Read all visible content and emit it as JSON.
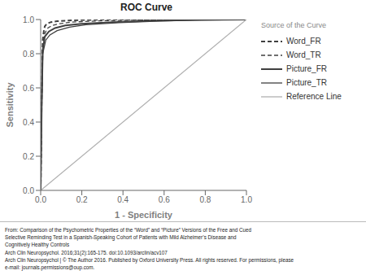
{
  "chart_data": {
    "type": "line",
    "title": "ROC Curve",
    "x_label": "1 - Specificity",
    "y_label": "Sensitivity",
    "xlim": [
      0.0,
      1.0
    ],
    "ylim": [
      0.0,
      1.0
    ],
    "xticks": [
      {
        "value": 0.0,
        "label": "0.0"
      },
      0.2,
      0.4,
      0.6,
      0.8,
      {
        "value": 1.0,
        "label": "1.0"
      }
    ],
    "yticks": [
      {
        "value": 0.0,
        "label": "0.0"
      },
      0.2,
      0.4,
      0.6,
      0.8,
      {
        "value": 1.0,
        "label": "1.0"
      }
    ],
    "grid": false,
    "legend_title": "Source of the Curve",
    "series": [
      {
        "name": "Word_FR",
        "color": "#404040",
        "line_style": "dashed",
        "x": [
          0.0,
          0.005,
          0.01,
          0.015,
          0.02,
          0.03,
          0.05,
          0.08,
          0.15,
          0.3,
          0.5,
          0.7,
          1.0
        ],
        "values": [
          0.0,
          0.55,
          0.88,
          0.93,
          0.96,
          0.975,
          0.985,
          0.99,
          0.995,
          1.0,
          1.0,
          1.0,
          1.0
        ]
      },
      {
        "name": "Word_TR",
        "color": "#404040",
        "line_style": "dashed",
        "x": [
          0.0,
          0.005,
          0.01,
          0.02,
          0.035,
          0.055,
          0.09,
          0.15,
          0.3,
          0.5,
          0.7,
          1.0
        ],
        "values": [
          0.0,
          0.52,
          0.85,
          0.92,
          0.95,
          0.965,
          0.975,
          0.985,
          0.993,
          0.997,
          1.0,
          1.0
        ]
      },
      {
        "name": "Picture_FR",
        "color": "#404040",
        "line_style": "solid",
        "x": [
          0.0,
          0.005,
          0.01,
          0.02,
          0.04,
          0.07,
          0.12,
          0.2,
          0.35,
          0.55,
          0.75,
          1.0
        ],
        "values": [
          0.0,
          0.5,
          0.82,
          0.9,
          0.93,
          0.95,
          0.965,
          0.975,
          0.985,
          0.993,
          0.998,
          1.0
        ]
      },
      {
        "name": "Picture_TR",
        "color": "#404040",
        "line_style": "solid",
        "x": [
          0.0,
          0.005,
          0.01,
          0.025,
          0.045,
          0.08,
          0.14,
          0.22,
          0.38,
          0.58,
          0.78,
          1.0
        ],
        "values": [
          0.0,
          0.48,
          0.8,
          0.88,
          0.91,
          0.935,
          0.955,
          0.97,
          0.982,
          0.991,
          0.997,
          1.0
        ]
      },
      {
        "name": "Reference Line",
        "color": "#b0b0b0",
        "line_style": "solid",
        "x": [
          0,
          1
        ],
        "values": [
          0,
          1
        ]
      }
    ],
    "annotations": [
      "From: Comparison of the Psychometric Properties of the “Word” and “Picture” Versions of the Free and Cued",
      "Selective Reminding Test in a Spanish-Speaking Cohort of Patients with Mild Alzheimer’s Disease and",
      "Cognitively Healthy Controls",
      "Arch Clin Neuropsychol. 2016;31(2):165-175. doi:10.1093/arclin/acv107",
      "Arch Clin Neuropsychol | © The Author 2016. Published by Oxford University Press. All rights reserved. For permissions, please",
      "e-mail: journals.permissions@oup.com."
    ]
  }
}
